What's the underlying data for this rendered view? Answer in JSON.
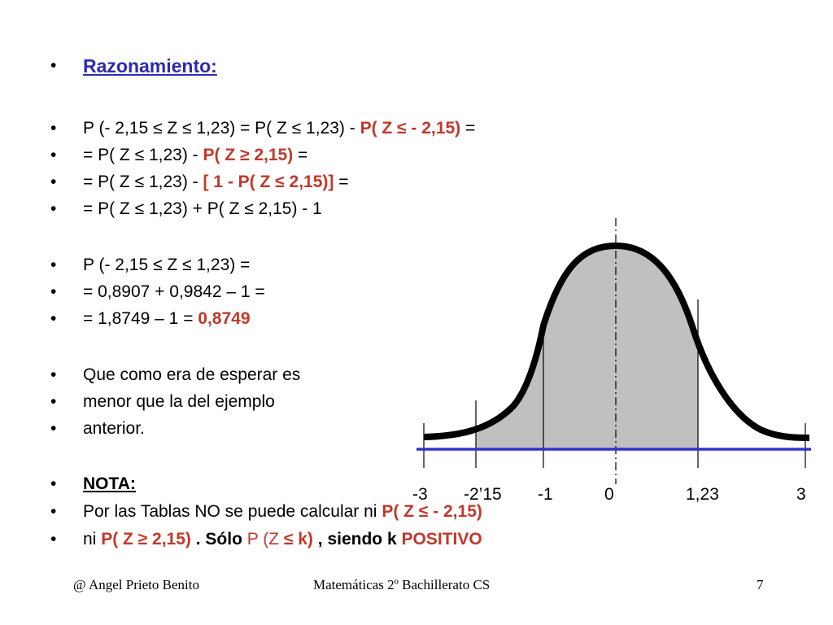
{
  "heading": {
    "bullet": "•",
    "text": "Razonamiento:"
  },
  "lines": [
    {
      "bullet": "•",
      "a": "P (- 2,15 ≤ Z ≤ 1,23) = P( Z ≤ 1,23)  -  ",
      "b": "P( Z ≤ - 2,15)",
      "c": " ="
    },
    {
      "bullet": "•",
      "a": "= P( Z ≤ 1,23)  -  ",
      "b": "P( Z ≥ 2,15)",
      "c": " ="
    },
    {
      "bullet": "•",
      "a": "= P( Z ≤ 1,23)  -  ",
      "b": "[ 1 - P( Z ≤  2,15)]",
      "c": " ="
    },
    {
      "bullet": "•",
      "a": "= P( Z ≤ 1,23) + P( Z ≤ 2,15)  -  1"
    },
    {
      "bullet": "•",
      "a": "P (- 2,15 ≤ Z ≤ 1,23) ="
    },
    {
      "bullet": "•",
      "a": "= 0,8907 + 0,9842 – 1 ="
    },
    {
      "bullet": "•",
      "a": "= 1,8749 – 1 = ",
      "b": "0,8749"
    },
    {
      "bullet": "•",
      "a": "Que como era de esperar es"
    },
    {
      "bullet": "•",
      "a": "menor que la del ejemplo"
    },
    {
      "bullet": "•",
      "a": "anterior."
    }
  ],
  "nota": {
    "bullet": "•",
    "text": "NOTA:"
  },
  "nota_lines": [
    {
      "bullet": "•",
      "a": "Por las Tablas NO se puede calcular  ni  ",
      "b": "P( Z ≤ - 2,15)"
    },
    {
      "bullet": "•",
      "a": "ni   ",
      "b": "P( Z ≥ 2,15)",
      "c": " .  Sólo  ",
      "d": "P (Z ",
      "e": "≤ k)",
      "f": " , siendo k  ",
      "g": "POSITIVO"
    }
  ],
  "graph": {
    "tick_labels": [
      "-3",
      "-2’15",
      "-1",
      "0",
      "1,23",
      "3"
    ],
    "colors": {
      "axis": "#3333cc",
      "fill": "#c0c0c0",
      "curve": "#000000"
    }
  },
  "footer": {
    "author": "@  Angel Prieto Benito",
    "course": "Matemáticas  2º Bachillerato CS",
    "page": "7"
  }
}
